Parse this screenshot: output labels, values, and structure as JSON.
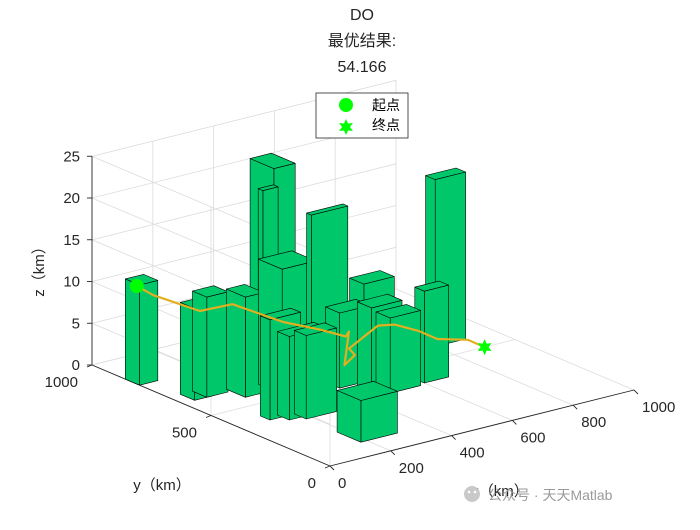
{
  "figure": {
    "title_lines": [
      "DO",
      "最优结果:",
      "54.166"
    ],
    "watermark": "公众号 · 天天Matlab"
  },
  "legend": {
    "items": [
      {
        "label": "起点",
        "marker": "circle",
        "color": "#00ff00"
      },
      {
        "label": "终点",
        "marker": "hexagram",
        "color": "#00ff00"
      }
    ]
  },
  "chart_data": {
    "type": "3d-path-with-obstacles",
    "title": "DO\n最优结果:\n54.166",
    "best_result": 54.166,
    "xlabel": "x（km）",
    "ylabel": "y（km）",
    "zlabel": "z（km）",
    "xlim": [
      0,
      1000
    ],
    "ylim": [
      0,
      1000
    ],
    "zlim": [
      0,
      25
    ],
    "xticks": [
      0,
      200,
      400,
      600,
      800,
      1000
    ],
    "yticks": [
      0,
      500,
      1000
    ],
    "zticks": [
      0,
      5,
      10,
      15,
      20,
      25
    ],
    "grid": true,
    "legend_position": "top-center",
    "colors": {
      "building_face": "#00c86a",
      "building_edge": "#000000",
      "path": "#e0b020",
      "marker": "#00ff00",
      "grid": "#dcdcdc",
      "axis": "#262626"
    },
    "buildings": [
      {
        "x": [
          0,
          60
        ],
        "y": [
          800,
          860
        ],
        "h": 12
      },
      {
        "x": [
          40,
          100
        ],
        "y": [
          620,
          680
        ],
        "h": 11
      },
      {
        "x": [
          80,
          150
        ],
        "y": [
          620,
          680
        ],
        "h": 12
      },
      {
        "x": [
          160,
          220
        ],
        "y": [
          560,
          640
        ],
        "h": 12
      },
      {
        "x": [
          250,
          360
        ],
        "y": [
          520,
          620
        ],
        "h": 15
      },
      {
        "x": [
          330,
          450
        ],
        "y": [
          500,
          520
        ],
        "h": 21
      },
      {
        "x": [
          390,
          440
        ],
        "y": [
          780,
          800
        ],
        "h": 20
      },
      {
        "x": [
          520,
          590
        ],
        "y": [
          900,
          1000
        ],
        "h": 20
      },
      {
        "x": [
          100,
          200
        ],
        "y": [
          380,
          420
        ],
        "h": 12
      },
      {
        "x": [
          140,
          260
        ],
        "y": [
          350,
          400
        ],
        "h": 10
      },
      {
        "x": [
          180,
          280
        ],
        "y": [
          330,
          380
        ],
        "h": 10
      },
      {
        "x": [
          400,
          500
        ],
        "y": [
          470,
          530
        ],
        "h": 9
      },
      {
        "x": [
          450,
          550
        ],
        "y": [
          400,
          460
        ],
        "h": 10
      },
      {
        "x": [
          480,
          580
        ],
        "y": [
          360,
          420
        ],
        "h": 9
      },
      {
        "x": [
          550,
          650
        ],
        "y": [
          560,
          620
        ],
        "h": 10
      },
      {
        "x": [
          600,
          680
        ],
        "y": [
          370,
          410
        ],
        "h": 11
      },
      {
        "x": [
          800,
          900
        ],
        "y": [
          580,
          620
        ],
        "h": 20
      },
      {
        "x": [
          180,
          300
        ],
        "y": [
          100,
          200
        ],
        "h": 5
      }
    ],
    "start": {
      "x": 30,
      "y": 850,
      "z": 11
    },
    "end": {
      "x": 900,
      "y": 500,
      "z": 0
    },
    "path": [
      [
        30,
        850,
        11
      ],
      [
        60,
        820,
        10
      ],
      [
        120,
        700,
        9
      ],
      [
        180,
        640,
        10
      ],
      [
        300,
        580,
        7.5
      ],
      [
        360,
        500,
        7
      ],
      [
        420,
        470,
        6
      ],
      [
        430,
        470,
        6.5
      ],
      [
        400,
        450,
        3
      ],
      [
        450,
        470,
        3.5
      ],
      [
        470,
        520,
        3.5
      ],
      [
        580,
        540,
        5
      ],
      [
        620,
        520,
        5
      ],
      [
        700,
        520,
        3.5
      ],
      [
        760,
        520,
        2
      ],
      [
        860,
        520,
        1
      ],
      [
        900,
        500,
        0
      ]
    ]
  }
}
